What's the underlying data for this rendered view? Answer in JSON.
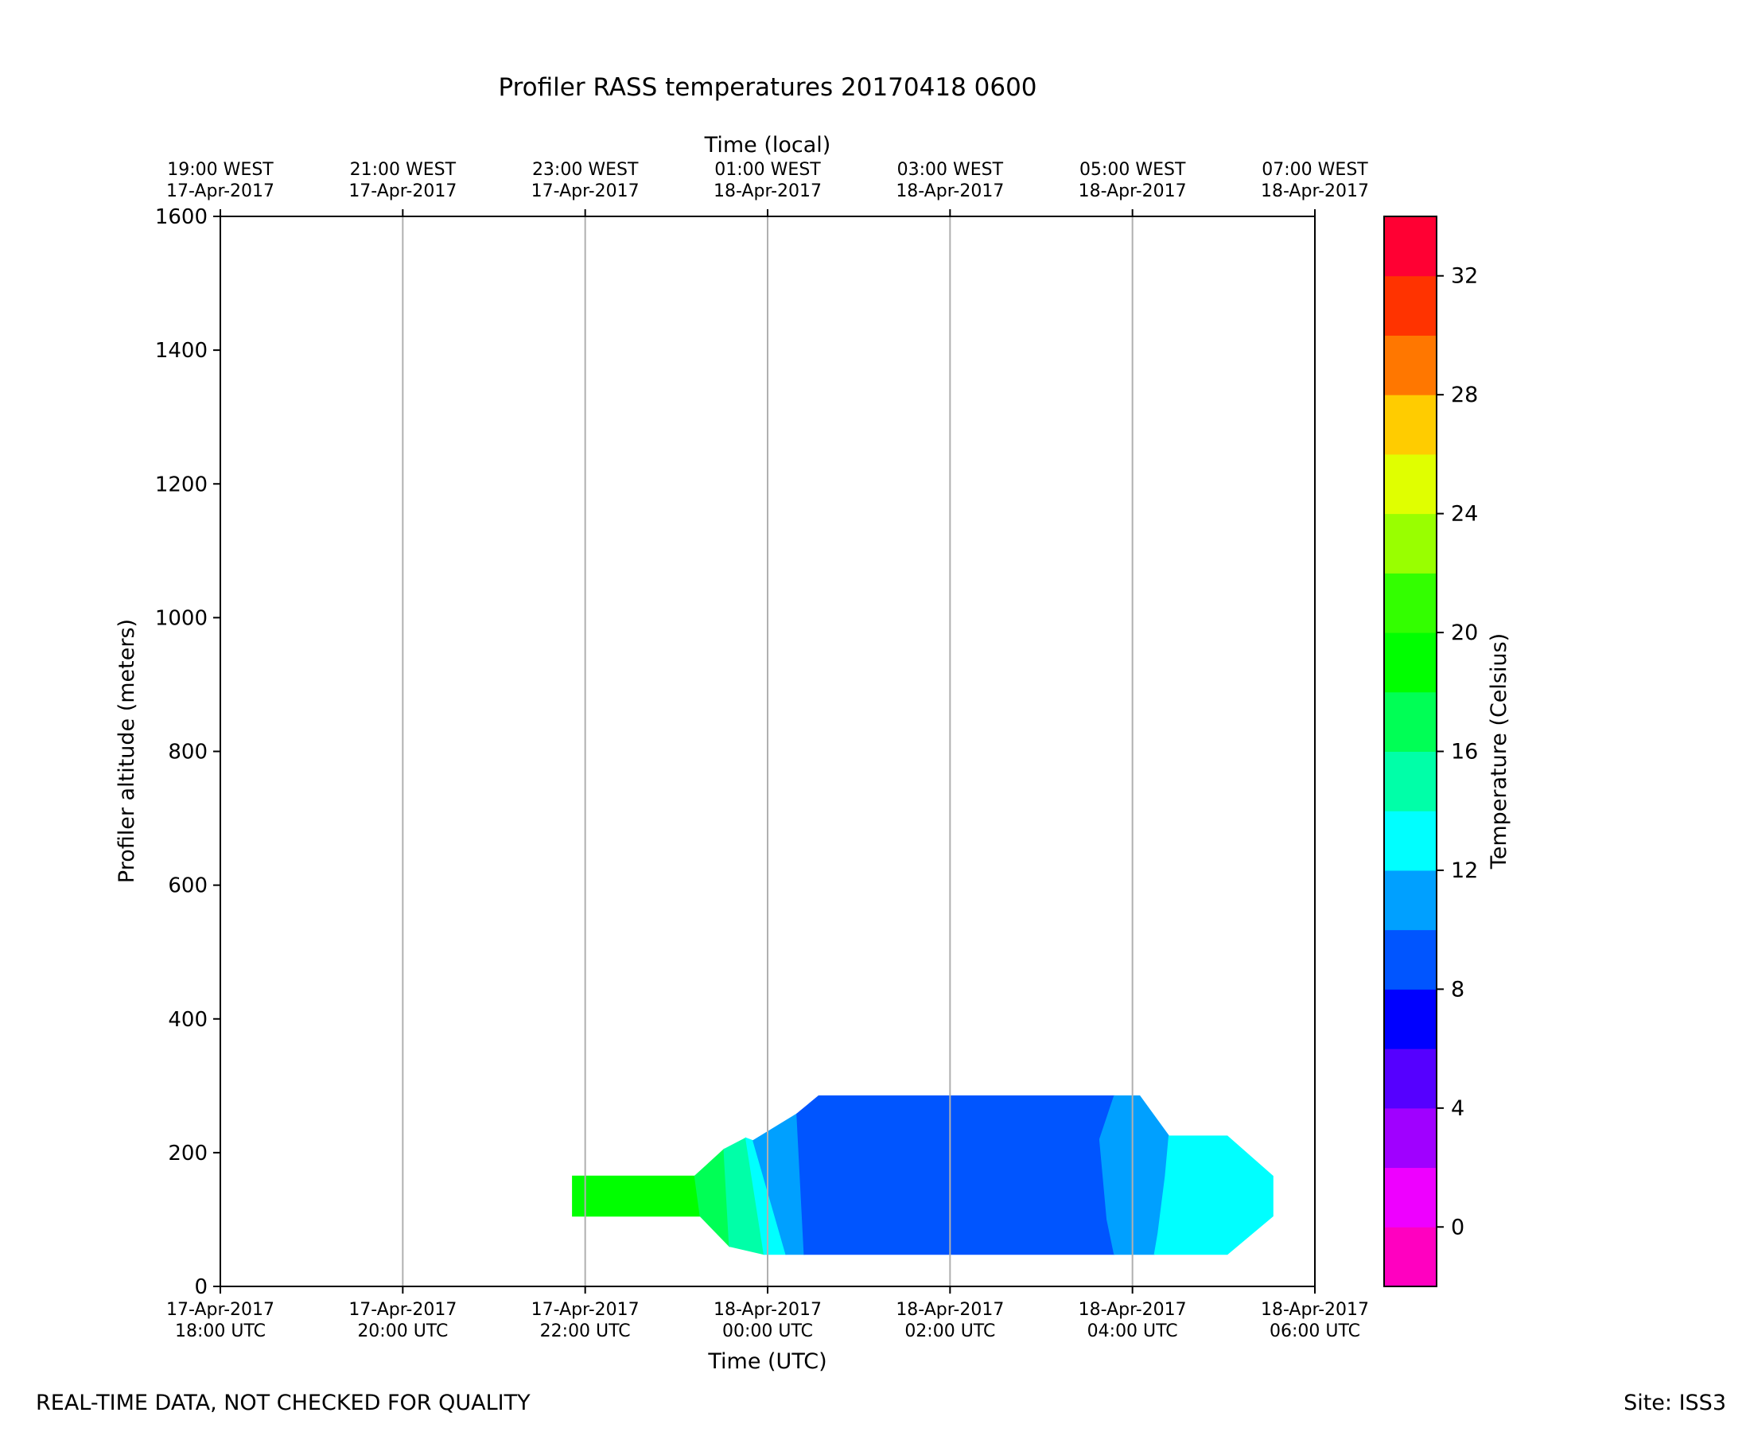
{
  "chart_data": {
    "type": "heatmap",
    "title": "Profiler RASS temperatures 20170418 0600",
    "xlabel": "Time (UTC)",
    "x2label": "Time (local)",
    "ylabel": "Profiler altitude (meters)",
    "colorbar_label": "Temperature (Celsius)",
    "ylim": [
      0,
      1600
    ],
    "yticks": [
      "0",
      "200",
      "400",
      "600",
      "800",
      "1000",
      "1200",
      "1400",
      "1600"
    ],
    "xlim": [
      "17-Apr-2017 18:00 UTC",
      "18-Apr-2017 06:00 UTC"
    ],
    "xticks_utc": [
      [
        "17-Apr-2017",
        "18:00 UTC"
      ],
      [
        "17-Apr-2017",
        "20:00 UTC"
      ],
      [
        "17-Apr-2017",
        "22:00 UTC"
      ],
      [
        "18-Apr-2017",
        "00:00 UTC"
      ],
      [
        "18-Apr-2017",
        "02:00 UTC"
      ],
      [
        "18-Apr-2017",
        "04:00 UTC"
      ],
      [
        "18-Apr-2017",
        "06:00 UTC"
      ]
    ],
    "xticks_local": [
      [
        "19:00 WEST",
        "17-Apr-2017"
      ],
      [
        "21:00 WEST",
        "17-Apr-2017"
      ],
      [
        "23:00 WEST",
        "17-Apr-2017"
      ],
      [
        "01:00 WEST",
        "18-Apr-2017"
      ],
      [
        "03:00 WEST",
        "18-Apr-2017"
      ],
      [
        "05:00 WEST",
        "18-Apr-2017"
      ],
      [
        "07:00 WEST",
        "18-Apr-2017"
      ]
    ],
    "vertical_grid": true,
    "colorbar": {
      "levels": [
        -2,
        0,
        2,
        4,
        6,
        8,
        10,
        12,
        14,
        16,
        18,
        20,
        22,
        24,
        26,
        28,
        30,
        32,
        34
      ],
      "colors": [
        "#ff00c0",
        "#ee00ff",
        "#a000ff",
        "#5500ff",
        "#0000ff",
        "#0055ff",
        "#00a0ff",
        "#00ffff",
        "#00ffa8",
        "#00ff55",
        "#00ff00",
        "#33ff00",
        "#99ff00",
        "#e0ff00",
        "#ffcc00",
        "#ff7700",
        "#ff3300",
        "#ff0033"
      ],
      "ticks": [
        0,
        4,
        8,
        12,
        16,
        20,
        24,
        28,
        32
      ]
    },
    "temperature_regions": [
      {
        "temp_range": [
          18,
          20
        ],
        "color": "#00ff00",
        "points": [
          [
            1.93,
            165
          ],
          [
            2.6,
            165
          ],
          [
            2.63,
            105
          ],
          [
            1.93,
            105
          ]
        ]
      },
      {
        "temp_range": [
          16,
          18
        ],
        "color": "#00ff55",
        "points": [
          [
            2.6,
            165
          ],
          [
            2.76,
            205
          ],
          [
            2.79,
            60
          ],
          [
            2.63,
            105
          ]
        ]
      },
      {
        "temp_range": [
          14,
          16
        ],
        "color": "#00ffa8",
        "points": [
          [
            2.76,
            205
          ],
          [
            2.88,
            222
          ],
          [
            2.98,
            48
          ],
          [
            2.79,
            60
          ]
        ]
      },
      {
        "temp_range": [
          12,
          14
        ],
        "color": "#00ffff",
        "points": [
          [
            2.88,
            222
          ],
          [
            2.92,
            218
          ],
          [
            3.1,
            48
          ],
          [
            2.98,
            48
          ]
        ]
      },
      {
        "temp_range": [
          10,
          12
        ],
        "color": "#00a0ff",
        "points": [
          [
            2.92,
            218
          ],
          [
            3.16,
            258
          ],
          [
            3.2,
            48
          ],
          [
            3.1,
            48
          ]
        ]
      },
      {
        "temp_range": [
          8,
          10
        ],
        "color": "#0055ff",
        "points": [
          [
            3.16,
            258
          ],
          [
            3.28,
            285
          ],
          [
            4.9,
            285
          ],
          [
            4.82,
            220
          ],
          [
            4.86,
            100
          ],
          [
            4.9,
            48
          ],
          [
            3.2,
            48
          ]
        ]
      },
      {
        "temp_range": [
          10,
          12
        ],
        "color": "#00a0ff",
        "points": [
          [
            4.9,
            285
          ],
          [
            5.04,
            285
          ],
          [
            5.2,
            225
          ],
          [
            5.18,
            165
          ],
          [
            5.14,
            80
          ],
          [
            5.12,
            48
          ],
          [
            4.9,
            48
          ],
          [
            4.86,
            100
          ],
          [
            4.82,
            220
          ]
        ]
      },
      {
        "temp_range": [
          12,
          14
        ],
        "color": "#00ffff",
        "points": [
          [
            5.2,
            225
          ],
          [
            5.52,
            225
          ],
          [
            5.77,
            165
          ],
          [
            5.77,
            105
          ],
          [
            5.52,
            48
          ],
          [
            5.12,
            48
          ],
          [
            5.14,
            80
          ],
          [
            5.18,
            165
          ]
        ]
      }
    ]
  },
  "footer": {
    "left": "REAL-TIME DATA, NOT CHECKED FOR QUALITY",
    "right": "Site: ISS3"
  }
}
